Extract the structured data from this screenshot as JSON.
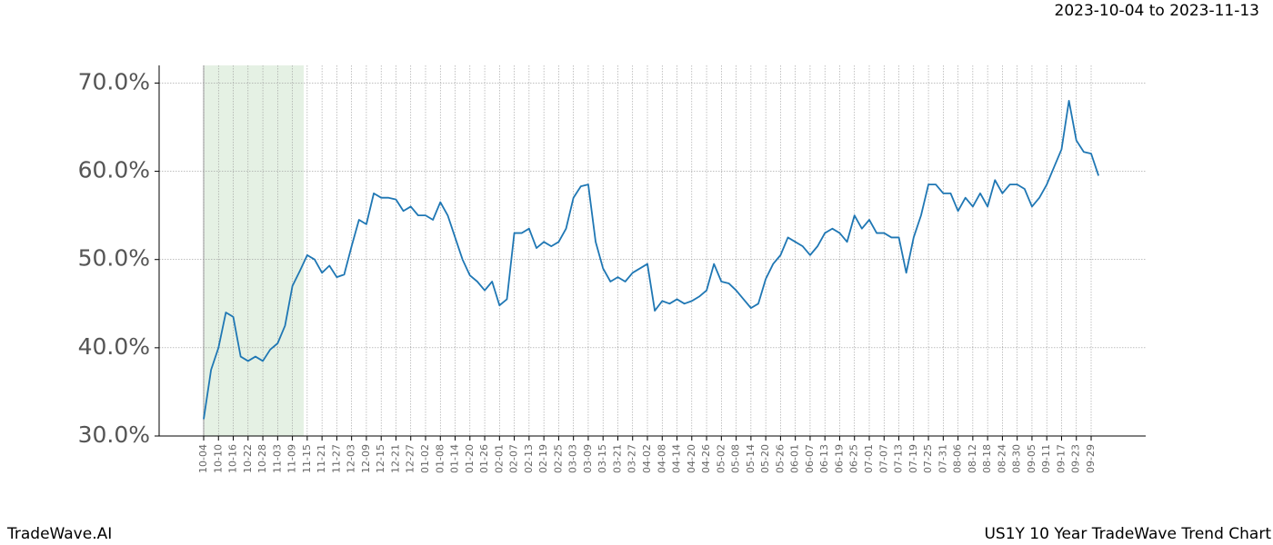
{
  "chart_data": {
    "type": "line",
    "subtitle": "2023-10-04 to 2023-11-13",
    "footer_left": "TradeWave.AI",
    "footer_right": "US1Y 10 Year TradeWave Trend Chart",
    "categories": [
      "10-04",
      null,
      "10-10",
      null,
      "10-16",
      null,
      "10-22",
      null,
      "10-28",
      null,
      "11-03",
      null,
      "11-09",
      null,
      "11-15",
      null,
      "11-21",
      null,
      "11-27",
      null,
      "12-03",
      null,
      "12-09",
      null,
      "12-15",
      null,
      "12-21",
      null,
      "12-27",
      null,
      "01-02",
      null,
      "01-08",
      null,
      "01-14",
      null,
      "01-20",
      null,
      "01-26",
      null,
      "02-01",
      null,
      "02-07",
      null,
      "02-13",
      null,
      "02-19",
      null,
      "02-25",
      null,
      "03-03",
      null,
      "03-09",
      null,
      "03-15",
      null,
      "03-21",
      null,
      "03-27",
      null,
      "04-02",
      null,
      "04-08",
      null,
      "04-14",
      null,
      "04-20",
      null,
      "04-26",
      null,
      "05-02",
      null,
      "05-08",
      null,
      "05-14",
      null,
      "05-20",
      null,
      "05-26",
      null,
      "06-01",
      null,
      "06-07",
      null,
      "06-13",
      null,
      "06-19",
      null,
      "06-25",
      null,
      "07-01",
      null,
      "07-07",
      null,
      "07-13",
      null,
      "07-19",
      null,
      "07-25",
      null,
      "07-31",
      null,
      "08-06",
      null,
      "08-12",
      null,
      "08-18",
      null,
      "08-24",
      null,
      "08-30",
      null,
      "09-05",
      null,
      "09-11",
      null,
      "09-17",
      null,
      "09-23",
      null,
      "09-29",
      null
    ],
    "values": [
      31.9,
      37.5,
      40.0,
      44.0,
      43.5,
      39.0,
      38.5,
      39.0,
      38.5,
      39.8,
      40.5,
      42.5,
      47.0,
      48.7,
      50.5,
      50.0,
      48.5,
      49.3,
      48.0,
      48.3,
      51.5,
      54.5,
      54.0,
      57.5,
      57.0,
      57.0,
      56.8,
      55.5,
      56.0,
      55.0,
      55.0,
      54.5,
      56.5,
      55.0,
      52.5,
      50.0,
      48.2,
      47.5,
      46.5,
      47.5,
      44.8,
      45.5,
      53.0,
      53.0,
      53.5,
      51.3,
      52.0,
      51.5,
      52.0,
      53.5,
      57.0,
      58.3,
      58.5,
      52.0,
      49.0,
      47.5,
      48.0,
      47.5,
      48.5,
      49.0,
      49.5,
      44.2,
      45.3,
      45.0,
      45.5,
      45.0,
      45.3,
      45.8,
      46.5,
      49.5,
      47.5,
      47.3,
      46.5,
      45.5,
      44.5,
      45.0,
      47.8,
      49.5,
      50.5,
      52.5,
      52.0,
      51.5,
      50.5,
      51.5,
      53.0,
      53.5,
      53.0,
      52.0,
      55.0,
      53.5,
      54.5,
      53.0,
      53.0,
      52.5,
      52.5,
      48.5,
      52.5,
      55.0,
      58.5,
      58.5,
      57.5,
      57.5,
      55.5,
      57.0,
      56.0,
      57.5,
      56.0,
      59.0,
      57.5,
      58.5,
      58.5,
      58.0,
      56.0,
      57.0,
      58.5,
      60.5,
      62.5,
      68.0,
      63.5,
      62.2,
      62.0,
      59.5
    ],
    "color": "#1f77b4",
    "ylim": [
      30,
      72
    ],
    "yticks": [
      {
        "value": 30,
        "label": "30.0%"
      },
      {
        "value": 40,
        "label": "40.0%"
      },
      {
        "value": 50,
        "label": "50.0%"
      },
      {
        "value": 60,
        "label": "60.0%"
      },
      {
        "value": 70,
        "label": "70.0%"
      }
    ],
    "grid": true
  }
}
